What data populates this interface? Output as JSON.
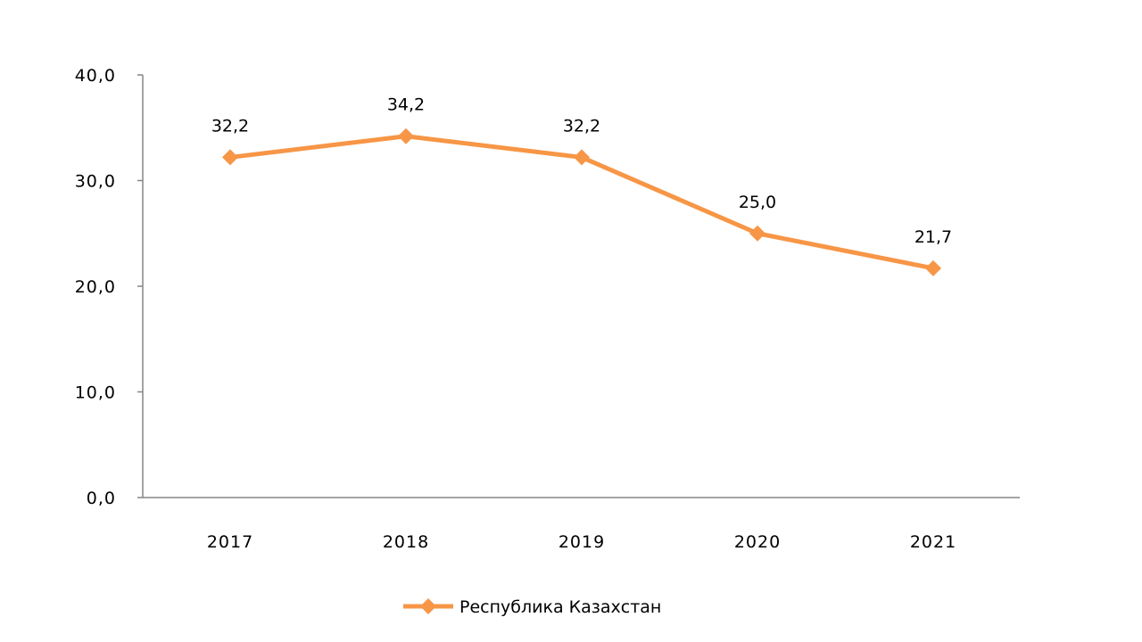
{
  "chart_data": {
    "type": "line",
    "categories": [
      "2017",
      "2018",
      "2019",
      "2020",
      "2021"
    ],
    "series": [
      {
        "name": "Республика Казахстан",
        "values": [
          32.2,
          34.2,
          32.2,
          25.0,
          21.7
        ],
        "data_labels": [
          "32,2",
          "34,2",
          "32,2",
          "25,0",
          "21,7"
        ],
        "color": "#F79646",
        "marker": "diamond"
      }
    ],
    "y_ticks": [
      "0,0",
      "10,0",
      "20,0",
      "30,0",
      "40,0"
    ],
    "ylim": [
      0,
      40
    ],
    "grid": false,
    "legend": "bottom",
    "title": "",
    "xlabel": "",
    "ylabel": ""
  }
}
